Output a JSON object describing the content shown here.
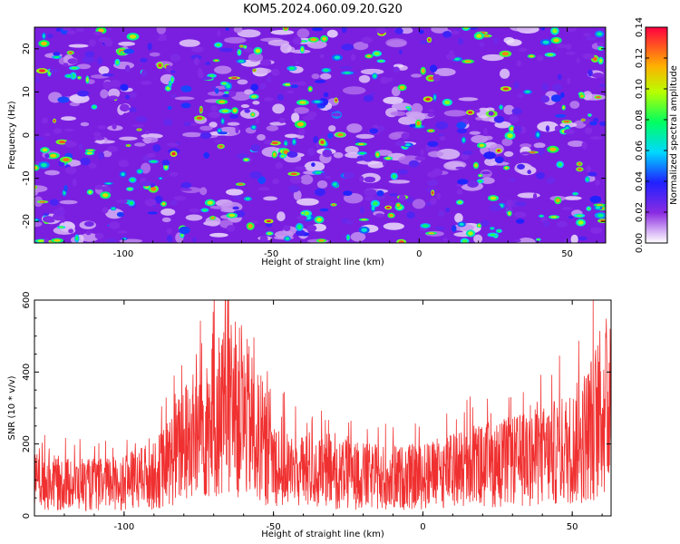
{
  "title": "KOM5.2024.060.09.20.G20",
  "spectrogram": {
    "type": "heatmap",
    "xlabel": "Height of straight line (km)",
    "ylabel": "Frequency (Hz)",
    "xlim": [
      -130,
      63
    ],
    "ylim": [
      -25,
      25
    ],
    "xticks": [
      "-100",
      "-50",
      "0",
      "50"
    ],
    "yticks": [
      "20",
      "10",
      "0",
      "-10",
      "-20"
    ],
    "colorbar_label": "Normalized spectral amplitude",
    "colorbar_range": [
      0.0,
      0.14
    ],
    "colorbar_ticks": [
      "0.00",
      "0.02",
      "0.04",
      "0.06",
      "0.08",
      "0.10",
      "0.12",
      "0.14"
    ]
  },
  "snr": {
    "type": "line",
    "xlabel": "Height of straight line (km)",
    "ylabel": "SNR (10 * v/v)",
    "xlim": [
      -130,
      63
    ],
    "ylim": [
      0,
      600
    ],
    "xticks": [
      "-100",
      "-50",
      "0",
      "50"
    ],
    "yticks": [
      "0",
      "200",
      "400",
      "600"
    ],
    "color": "#f03030",
    "profile": [
      {
        "x": -130,
        "y": 95
      },
      {
        "x": -120,
        "y": 90
      },
      {
        "x": -110,
        "y": 85
      },
      {
        "x": -100,
        "y": 95
      },
      {
        "x": -90,
        "y": 110
      },
      {
        "x": -85,
        "y": 150
      },
      {
        "x": -80,
        "y": 200
      },
      {
        "x": -75,
        "y": 230
      },
      {
        "x": -70,
        "y": 270
      },
      {
        "x": -66,
        "y": 300
      },
      {
        "x": -62,
        "y": 290
      },
      {
        "x": -58,
        "y": 260
      },
      {
        "x": -55,
        "y": 210
      },
      {
        "x": -50,
        "y": 160
      },
      {
        "x": -45,
        "y": 130
      },
      {
        "x": -40,
        "y": 120
      },
      {
        "x": -30,
        "y": 115
      },
      {
        "x": -20,
        "y": 110
      },
      {
        "x": -10,
        "y": 105
      },
      {
        "x": 0,
        "y": 110
      },
      {
        "x": 10,
        "y": 125
      },
      {
        "x": 20,
        "y": 140
      },
      {
        "x": 30,
        "y": 150
      },
      {
        "x": 40,
        "y": 165
      },
      {
        "x": 50,
        "y": 190
      },
      {
        "x": 55,
        "y": 230
      },
      {
        "x": 60,
        "y": 290
      },
      {
        "x": 63,
        "y": 320
      }
    ]
  }
}
